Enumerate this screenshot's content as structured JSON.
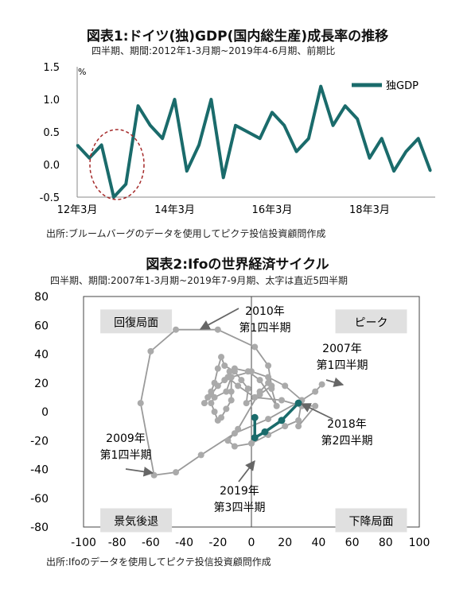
{
  "chart_data": [
    {
      "type": "line",
      "title": "図表1:ドイツ(独)GDP(国内総生産)成長率の推移",
      "subtitle": "四半期、期間:2012年1-3月期~2019年4-6月期、前期比",
      "ylabel": "%",
      "ylim": [
        -0.5,
        1.5
      ],
      "yticks": [
        "-0.5",
        "0.0",
        "0.5",
        "1.0",
        "1.5"
      ],
      "xtick_labels": [
        "12年3月",
        "14年3月",
        "16年3月",
        "18年3月"
      ],
      "series": [
        {
          "name": "独GDP",
          "values": [
            0.3,
            0.1,
            0.3,
            -0.5,
            -0.3,
            0.9,
            0.6,
            0.4,
            1.0,
            -0.1,
            0.3,
            1.0,
            -0.2,
            0.6,
            0.5,
            0.4,
            0.8,
            0.6,
            0.2,
            0.4,
            1.2,
            0.6,
            0.9,
            0.7,
            0.1,
            0.4,
            -0.1,
            0.2,
            0.4,
            -0.1
          ]
        }
      ],
      "color": "#1a6b6b",
      "source": "出所:ブルームバーグのデータを使用してピクテ投信投資顧問作成"
    },
    {
      "type": "scatter",
      "title": "図表2:Ifoの世界経済サイクル",
      "subtitle": "四半期、期間:2007年1-3月期~2019年7-9月期、太字は直近5四半期",
      "xlim": [
        -100,
        100
      ],
      "ylim": [
        -80,
        80
      ],
      "xticks": [
        "-100",
        "-80",
        "-60",
        "-40",
        "-20",
        "0",
        "20",
        "40",
        "60",
        "80",
        "100"
      ],
      "yticks": [
        "-80",
        "-60",
        "-40",
        "-20",
        "0",
        "20",
        "40",
        "60",
        "80"
      ],
      "quadrants": {
        "top_left": "回復局面",
        "top_right": "ピーク",
        "bottom_left": "景気後退",
        "bottom_right": "下降局面"
      },
      "annotations": {
        "a2010": [
          "2010年",
          "第1四半期"
        ],
        "a2007": [
          "2007年",
          "第1四半期"
        ],
        "a2018": [
          "2018年",
          "第2四半期"
        ],
        "a2009": [
          "2009年",
          "第1四半期"
        ],
        "a2019": [
          "2019年",
          "第3四半期"
        ]
      },
      "series": [
        {
          "name": "history",
          "x": [
            42,
            38,
            30,
            10,
            -10,
            -30,
            -45,
            -58,
            -66,
            -60,
            -45,
            -20,
            2,
            10,
            12,
            5,
            -3,
            -2,
            -6,
            -10,
            -16,
            -18,
            -20,
            -22,
            -24,
            -26,
            -28,
            -24,
            -20,
            -16,
            -13,
            -12,
            -12,
            -12,
            -15,
            -18,
            -20,
            -22,
            -24,
            -22,
            -15,
            -12,
            0,
            10,
            20,
            30,
            28,
            20,
            10,
            0,
            -10,
            -14,
            -8,
            5,
            10,
            12,
            15,
            5,
            -2,
            -10,
            -14,
            -8,
            2,
            18,
            30,
            38,
            28
          ],
          "y": [
            19,
            14,
            8,
            -5,
            -15,
            -30,
            -42,
            -44,
            6,
            42,
            57,
            57,
            45,
            32,
            18,
            12,
            6,
            16,
            22,
            28,
            32,
            38,
            30,
            20,
            14,
            10,
            6,
            12,
            18,
            22,
            28,
            24,
            14,
            8,
            2,
            -4,
            -6,
            0,
            6,
            10,
            14,
            24,
            28,
            24,
            18,
            8,
            -6,
            -10,
            -16,
            -22,
            -24,
            -20,
            -12,
            14,
            20,
            16,
            4,
            22,
            28,
            30,
            24,
            18,
            10,
            8,
            4,
            4,
            -10
          ]
        },
        {
          "name": "latest",
          "x": [
            28,
            18,
            8,
            2,
            2
          ],
          "y": [
            6,
            -6,
            -14,
            -18,
            -4
          ]
        }
      ],
      "source": "出所:Ifoのデータを使用してピクテ投信投資顧問作成"
    }
  ]
}
